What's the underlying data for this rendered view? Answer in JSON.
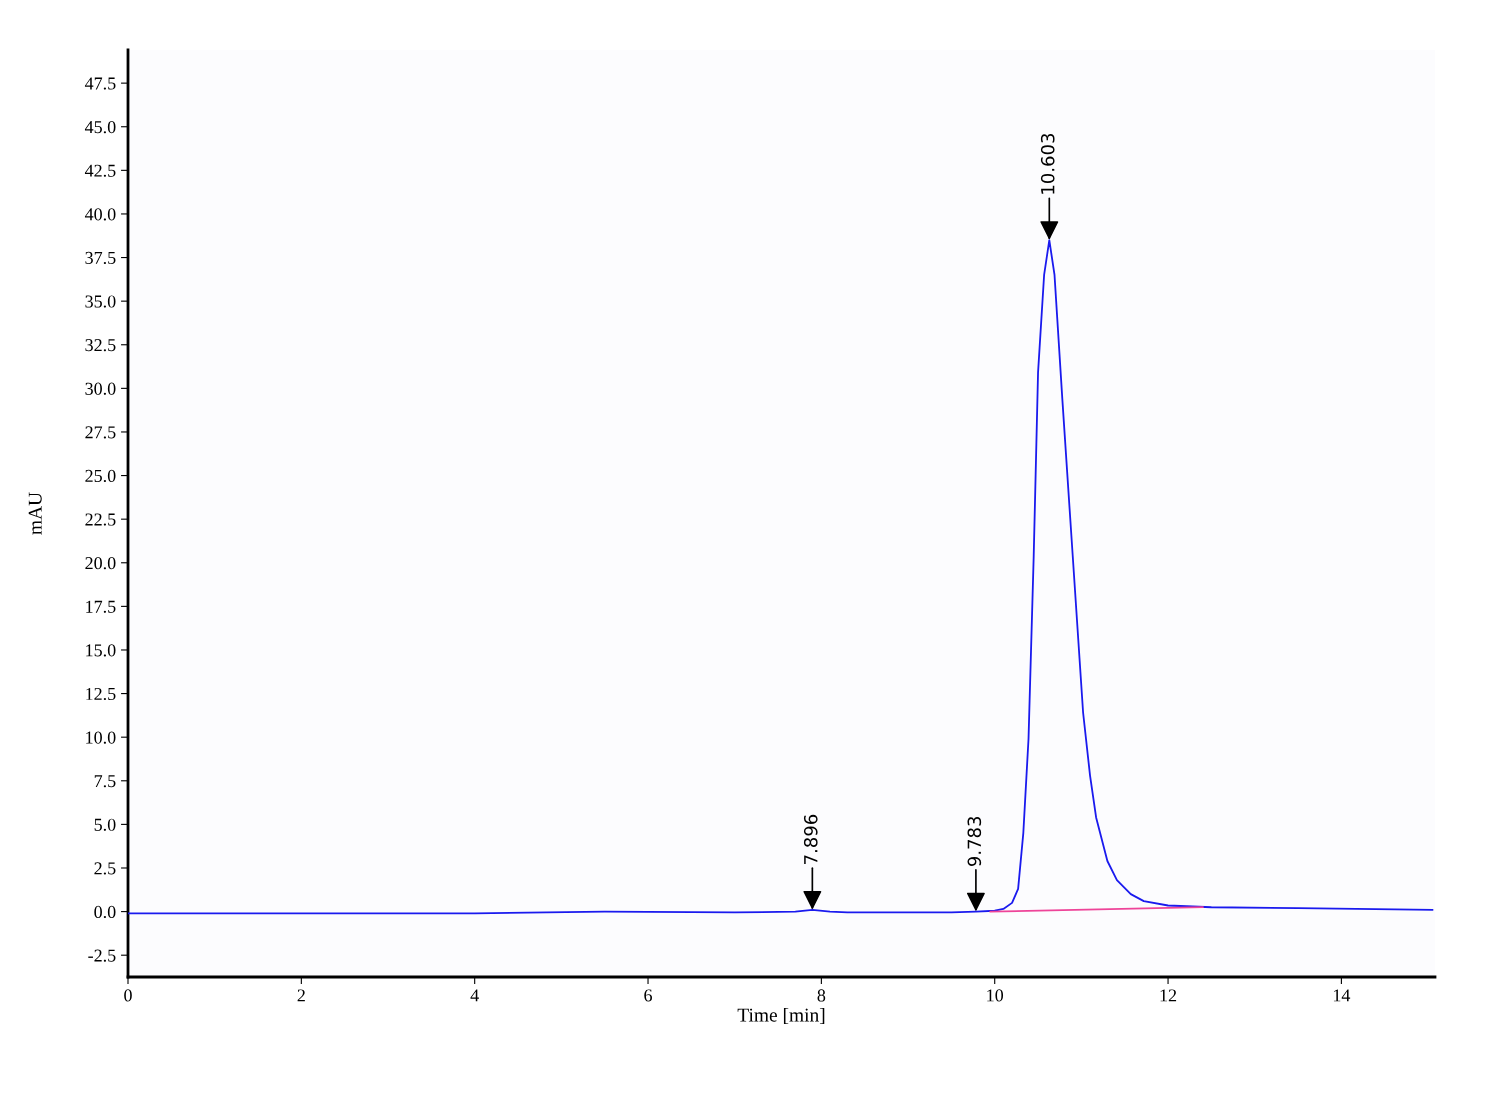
{
  "chart_data": {
    "type": "line",
    "xlabel": "Time [min]",
    "ylabel": "mAU",
    "xlim": [
      0,
      15.08
    ],
    "ylim": [
      -3.75,
      49.4
    ],
    "xticks": [
      0,
      2,
      4,
      6,
      8,
      10,
      12,
      14
    ],
    "yticks": [
      {
        "value": -2.5,
        "label": "-2.5"
      },
      {
        "value": 0,
        "label": "0.0"
      },
      {
        "value": 2.5,
        "label": "2.5"
      },
      {
        "value": 5,
        "label": "5.0"
      },
      {
        "value": 7.5,
        "label": "7.5"
      },
      {
        "value": 10,
        "label": "10.0"
      },
      {
        "value": 12.5,
        "label": "12.5"
      },
      {
        "value": 15,
        "label": "15.0"
      },
      {
        "value": 17.5,
        "label": "17.5"
      },
      {
        "value": 20,
        "label": "20.0"
      },
      {
        "value": 22.5,
        "label": "22.5"
      },
      {
        "value": 25,
        "label": "25.0"
      },
      {
        "value": 27.5,
        "label": "27.5"
      },
      {
        "value": 30,
        "label": "30.0"
      },
      {
        "value": 32.5,
        "label": "32.5"
      },
      {
        "value": 35,
        "label": "35.0"
      },
      {
        "value": 37.5,
        "label": "37.5"
      },
      {
        "value": 40,
        "label": "40.0"
      },
      {
        "value": 42.5,
        "label": "42.5"
      },
      {
        "value": 45,
        "label": "45.0"
      },
      {
        "value": 47.5,
        "label": "47.5"
      }
    ],
    "grid": false,
    "legend": false,
    "marker": "none",
    "line_style": "solid",
    "series": [
      {
        "color": "#ee4499",
        "x": [
          9.95,
          12.4
        ],
        "values": [
          0.0,
          0.25
        ]
      },
      {
        "color": "#1a1aee",
        "x": [
          0,
          2,
          4,
          5.5,
          7.0,
          7.7,
          7.896,
          8.1,
          8.3,
          9.0,
          9.5,
          9.783,
          10.0,
          10.1,
          10.2,
          10.27,
          10.33,
          10.39,
          10.45,
          10.5,
          10.57,
          10.63,
          10.69,
          10.78,
          10.9,
          11.02,
          11.1,
          11.17,
          11.3,
          11.41,
          11.57,
          11.72,
          12.0,
          12.5,
          13.5,
          15.05
        ],
        "values": [
          -0.1,
          -0.1,
          -0.1,
          0.0,
          -0.05,
          0.0,
          0.1,
          0.0,
          -0.05,
          -0.05,
          -0.05,
          0.0,
          0.05,
          0.15,
          0.5,
          1.3,
          4.5,
          9.9,
          20.4,
          30.9,
          36.5,
          38.5,
          36.5,
          29.4,
          20.4,
          11.4,
          7.8,
          5.4,
          2.9,
          1.8,
          1.0,
          0.6,
          0.35,
          0.25,
          0.2,
          0.1
        ]
      }
    ],
    "annotations": [
      {
        "text": "7.896",
        "x": 7.896,
        "y": 0.1
      },
      {
        "text": "9.783",
        "x": 9.783,
        "y": 0.0
      },
      {
        "text": "10.603",
        "x": 10.63,
        "y": 38.5
      }
    ]
  }
}
